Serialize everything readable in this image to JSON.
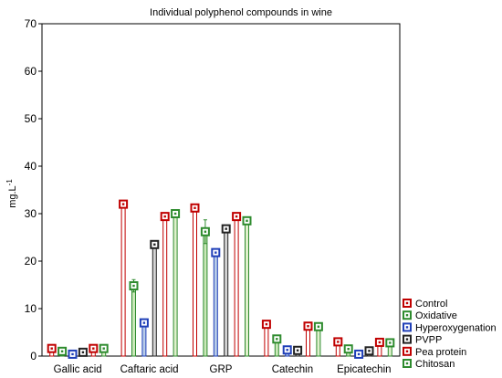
{
  "chart_data": {
    "type": "bar",
    "title": "Individual polyphenol compounds in wine",
    "ylabel": "mg.L",
    "ylabel_superscript": "-1",
    "xlabel": "",
    "ylim": [
      0,
      70
    ],
    "yticks": [
      0,
      10,
      20,
      30,
      40,
      50,
      60,
      70
    ],
    "grid": false,
    "legend_position": "bottom-right",
    "categories": [
      "Gallic acid",
      "Caftaric acid",
      "GRP",
      "Catechin",
      "Epicatechin"
    ],
    "series": [
      {
        "name": "Control",
        "color": "#c00000",
        "fill": "#ffffff",
        "values": [
          1.6,
          32.0,
          31.2,
          6.7,
          3.0
        ],
        "errors": [
          0.3,
          0.4,
          0.4,
          0.3,
          0.2
        ]
      },
      {
        "name": "Oxidative",
        "color": "#2e8b2e",
        "fill": "#c9e8b8",
        "values": [
          1.0,
          14.8,
          26.2,
          3.6,
          1.5
        ],
        "errors": [
          0.2,
          1.3,
          2.5,
          0.3,
          0.2
        ]
      },
      {
        "name": "Hyperoxygenation",
        "color": "#1f3fb8",
        "fill": "#b8cce8",
        "values": [
          0.4,
          7.0,
          21.8,
          1.3,
          0.4
        ],
        "errors": [
          0.1,
          0.3,
          0.5,
          0.2,
          0.1
        ]
      },
      {
        "name": "PVPP",
        "color": "#222222",
        "fill": "#d4d4d4",
        "values": [
          0.8,
          23.5,
          26.8,
          1.2,
          1.1
        ],
        "errors": [
          0.1,
          0.4,
          0.5,
          0.1,
          0.1
        ]
      },
      {
        "name": "Pea protein",
        "color": "#c00000",
        "fill": "#ffffff",
        "values": [
          1.6,
          29.4,
          29.4,
          6.3,
          2.9
        ],
        "errors": [
          0.2,
          0.4,
          0.4,
          0.3,
          0.2
        ]
      },
      {
        "name": "Chitosan",
        "color": "#2e8b2e",
        "fill": "#dff0cc",
        "values": [
          1.6,
          30.0,
          28.5,
          6.2,
          2.8
        ],
        "errors": [
          0.2,
          0.4,
          0.4,
          0.3,
          0.2
        ]
      }
    ]
  }
}
